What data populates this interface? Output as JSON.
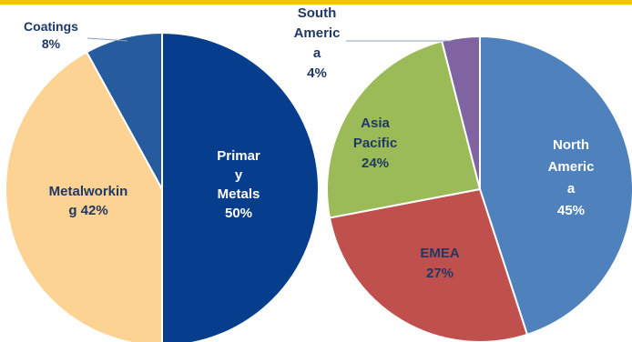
{
  "colors": {
    "top_bar": "#f5c400",
    "separator": "#ffffff"
  },
  "chart_data": [
    {
      "type": "pie",
      "title": "",
      "slices": [
        {
          "label": "Primary Metals",
          "value": 50,
          "display_lines": [
            "Primar",
            "y",
            "Metals",
            "50%"
          ],
          "color": "#063d8c",
          "text_color": "#ffffff"
        },
        {
          "label": "Metalworking",
          "value": 42,
          "display_lines": [
            "Metalworkin",
            "g 42%"
          ],
          "color": "#fdd394",
          "text_color": "#1f3864"
        },
        {
          "label": "Coatings",
          "value": 8,
          "display_lines": [
            "Coatings",
            "8%"
          ],
          "color": "#265c9d",
          "text_color": "#1f3864"
        }
      ]
    },
    {
      "type": "pie",
      "title": "",
      "slices": [
        {
          "label": "North America",
          "value": 45,
          "display_lines": [
            "North",
            "Americ",
            "a",
            "45%"
          ],
          "color": "#4f81bd",
          "text_color": "#ffffff"
        },
        {
          "label": "EMEA",
          "value": 27,
          "display_lines": [
            "EMEA",
            "27%"
          ],
          "color": "#c0504d",
          "text_color": "#1f3864"
        },
        {
          "label": "Asia Pacific",
          "value": 24,
          "display_lines": [
            "Asia",
            "Pacific",
            "24%"
          ],
          "color": "#9bbb59",
          "text_color": "#1f3864"
        },
        {
          "label": "South America",
          "value": 4,
          "display_lines": [
            "South",
            "Americ",
            "a",
            "4%"
          ],
          "color": "#8064a2",
          "text_color": "#1f3864"
        }
      ]
    }
  ]
}
